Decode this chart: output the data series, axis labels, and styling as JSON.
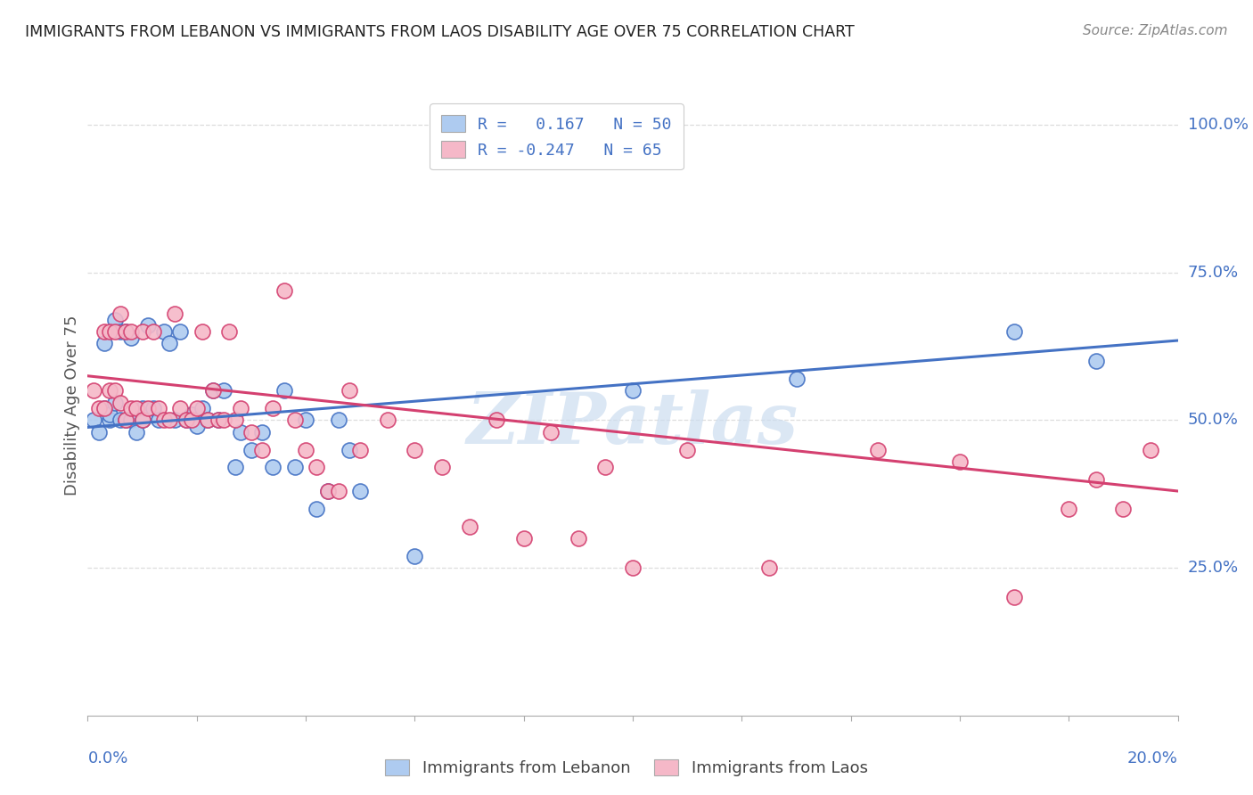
{
  "title": "IMMIGRANTS FROM LEBANON VS IMMIGRANTS FROM LAOS DISABILITY AGE OVER 75 CORRELATION CHART",
  "source": "Source: ZipAtlas.com",
  "ylabel": "Disability Age Over 75",
  "right_yticks": [
    "100.0%",
    "75.0%",
    "50.0%",
    "25.0%"
  ],
  "right_ytick_vals": [
    1.0,
    0.75,
    0.5,
    0.25
  ],
  "series_lebanon": {
    "color": "#aecbf0",
    "edge_color": "#4472c4",
    "x": [
      0.001,
      0.002,
      0.003,
      0.003,
      0.004,
      0.004,
      0.005,
      0.005,
      0.006,
      0.006,
      0.007,
      0.007,
      0.008,
      0.008,
      0.009,
      0.01,
      0.01,
      0.011,
      0.012,
      0.013,
      0.014,
      0.015,
      0.016,
      0.017,
      0.018,
      0.019,
      0.02,
      0.021,
      0.022,
      0.023,
      0.024,
      0.025,
      0.027,
      0.028,
      0.03,
      0.032,
      0.034,
      0.036,
      0.038,
      0.04,
      0.042,
      0.044,
      0.046,
      0.048,
      0.05,
      0.06,
      0.1,
      0.13,
      0.17,
      0.185
    ],
    "y": [
      0.5,
      0.48,
      0.52,
      0.63,
      0.5,
      0.51,
      0.53,
      0.67,
      0.5,
      0.65,
      0.5,
      0.65,
      0.5,
      0.64,
      0.48,
      0.52,
      0.5,
      0.66,
      0.52,
      0.5,
      0.65,
      0.63,
      0.5,
      0.65,
      0.5,
      0.51,
      0.49,
      0.52,
      0.5,
      0.55,
      0.5,
      0.55,
      0.42,
      0.48,
      0.45,
      0.48,
      0.42,
      0.55,
      0.42,
      0.5,
      0.35,
      0.38,
      0.5,
      0.45,
      0.38,
      0.27,
      0.55,
      0.57,
      0.65,
      0.6
    ]
  },
  "series_laos": {
    "color": "#f5b8c8",
    "edge_color": "#d44070",
    "x": [
      0.001,
      0.002,
      0.003,
      0.003,
      0.004,
      0.004,
      0.005,
      0.005,
      0.006,
      0.006,
      0.007,
      0.007,
      0.008,
      0.008,
      0.009,
      0.01,
      0.01,
      0.011,
      0.012,
      0.013,
      0.014,
      0.015,
      0.016,
      0.017,
      0.018,
      0.019,
      0.02,
      0.021,
      0.022,
      0.023,
      0.024,
      0.025,
      0.026,
      0.027,
      0.028,
      0.03,
      0.032,
      0.034,
      0.036,
      0.038,
      0.04,
      0.042,
      0.044,
      0.046,
      0.048,
      0.05,
      0.055,
      0.06,
      0.065,
      0.07,
      0.075,
      0.08,
      0.085,
      0.09,
      0.095,
      0.1,
      0.11,
      0.125,
      0.145,
      0.16,
      0.17,
      0.18,
      0.185,
      0.19,
      0.195
    ],
    "y": [
      0.55,
      0.52,
      0.65,
      0.52,
      0.55,
      0.65,
      0.65,
      0.55,
      0.68,
      0.53,
      0.5,
      0.65,
      0.52,
      0.65,
      0.52,
      0.5,
      0.65,
      0.52,
      0.65,
      0.52,
      0.5,
      0.5,
      0.68,
      0.52,
      0.5,
      0.5,
      0.52,
      0.65,
      0.5,
      0.55,
      0.5,
      0.5,
      0.65,
      0.5,
      0.52,
      0.48,
      0.45,
      0.52,
      0.72,
      0.5,
      0.45,
      0.42,
      0.38,
      0.38,
      0.55,
      0.45,
      0.5,
      0.45,
      0.42,
      0.32,
      0.5,
      0.3,
      0.48,
      0.3,
      0.42,
      0.25,
      0.45,
      0.25,
      0.45,
      0.43,
      0.2,
      0.35,
      0.4,
      0.35,
      0.45
    ]
  },
  "leb_line": {
    "x0": 0.0,
    "y0": 0.488,
    "x1": 0.2,
    "y1": 0.635
  },
  "laos_line": {
    "x0": 0.0,
    "y0": 0.575,
    "x1": 0.2,
    "y1": 0.38
  },
  "xmin": 0.0,
  "xmax": 0.2,
  "ymin": 0.0,
  "ymax": 1.05,
  "background_color": "#ffffff",
  "grid_color": "#dddddd",
  "title_color": "#222222",
  "axis_color": "#4472c4",
  "watermark": "ZIPatlas",
  "watermark_color": "#ccddf0"
}
